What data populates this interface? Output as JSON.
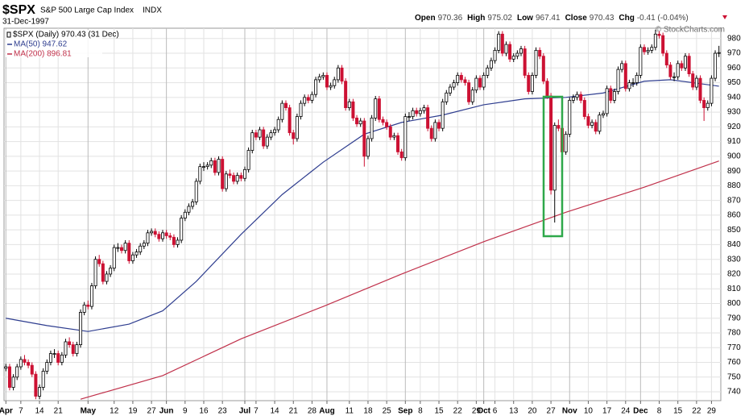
{
  "header": {
    "symbol": "$SPX",
    "name": "S&P 500 Large Cap Index",
    "exchange": "INDX",
    "date": "31-Dec-1997",
    "quote": [
      {
        "label": "Open",
        "value": "970.36"
      },
      {
        "label": "High",
        "value": "975.02"
      },
      {
        "label": "Low",
        "value": "967.41"
      },
      {
        "label": "Close",
        "value": "970.43"
      },
      {
        "label": "Chg",
        "value": "-0.41 (-0.04%)"
      }
    ],
    "credit": "© StockCharts.com"
  },
  "chart_data": {
    "type": "candlestick",
    "name": "$SPX (Daily) 970.43 (31 Dec)",
    "up_color": "#000000",
    "down_color": "#cc1133",
    "xlim": [
      -0.5,
      191.5
    ],
    "ylim": [
      734,
      987
    ],
    "yticks": [
      740,
      750,
      760,
      770,
      780,
      790,
      800,
      810,
      820,
      830,
      840,
      850,
      860,
      870,
      880,
      890,
      900,
      910,
      920,
      930,
      940,
      950,
      960,
      970,
      980
    ],
    "xticks": [
      {
        "value": 0,
        "label": "Apr"
      },
      {
        "value": 4,
        "label": "7"
      },
      {
        "value": 9,
        "label": "14"
      },
      {
        "value": 14,
        "label": "21"
      },
      {
        "value": 22,
        "label": "May"
      },
      {
        "value": 29,
        "label": "12"
      },
      {
        "value": 34,
        "label": "19"
      },
      {
        "value": 39,
        "label": "27"
      },
      {
        "value": 43,
        "label": "Jun"
      },
      {
        "value": 48,
        "label": "9"
      },
      {
        "value": 53,
        "label": "16"
      },
      {
        "value": 58,
        "label": "23"
      },
      {
        "value": 64,
        "label": "Jul"
      },
      {
        "value": 67,
        "label": "7"
      },
      {
        "value": 72,
        "label": "14"
      },
      {
        "value": 77,
        "label": "21"
      },
      {
        "value": 82,
        "label": "28"
      },
      {
        "value": 86,
        "label": "Aug"
      },
      {
        "value": 92,
        "label": "11"
      },
      {
        "value": 97,
        "label": "18"
      },
      {
        "value": 102,
        "label": "25"
      },
      {
        "value": 107,
        "label": "Sep"
      },
      {
        "value": 111,
        "label": "8"
      },
      {
        "value": 116,
        "label": "15"
      },
      {
        "value": 121,
        "label": "22"
      },
      {
        "value": 126,
        "label": "29"
      },
      {
        "value": 128,
        "label": "Oct"
      },
      {
        "value": 131,
        "label": "6"
      },
      {
        "value": 136,
        "label": "13"
      },
      {
        "value": 141,
        "label": "20"
      },
      {
        "value": 146,
        "label": "27"
      },
      {
        "value": 151,
        "label": "Nov"
      },
      {
        "value": 156,
        "label": "10"
      },
      {
        "value": 161,
        "label": "17"
      },
      {
        "value": 166,
        "label": "24"
      },
      {
        "value": 170,
        "label": "Dec"
      },
      {
        "value": 175,
        "label": "8"
      },
      {
        "value": 180,
        "label": "15"
      },
      {
        "value": 185,
        "label": "22"
      },
      {
        "value": 189,
        "label": "29"
      }
    ],
    "grid": true,
    "open": [
      756,
      757,
      743,
      750,
      757,
      762,
      760,
      758,
      752,
      737,
      743,
      754,
      760,
      766,
      766,
      760,
      765,
      774,
      772,
      766,
      772,
      794,
      799,
      798,
      812,
      830,
      827,
      815,
      820,
      824,
      838,
      838,
      836,
      841,
      829,
      833,
      835,
      839,
      841,
      848,
      849,
      847,
      844,
      848,
      846,
      845,
      840,
      843,
      858,
      862,
      866,
      869,
      883,
      893,
      893,
      894,
      897,
      889,
      898,
      878,
      888,
      887,
      883,
      887,
      885,
      891,
      904,
      916,
      913,
      918,
      907,
      913,
      916,
      918,
      925,
      936,
      933,
      916,
      912,
      927,
      936,
      940,
      938,
      942,
      952,
      954,
      955,
      947,
      948,
      952,
      960,
      951,
      933,
      937,
      926,
      922,
      924,
      900,
      912,
      926,
      939,
      925,
      923,
      920,
      913,
      914,
      903,
      899,
      927,
      927,
      931,
      929,
      931,
      933,
      919,
      912,
      923,
      919,
      937,
      943,
      947,
      950,
      955,
      952,
      950,
      937,
      945,
      953,
      947,
      955,
      960,
      965,
      972,
      983,
      970,
      976,
      966,
      968,
      970,
      973,
      955,
      944,
      955,
      972,
      968,
      951,
      941,
      877,
      921,
      919,
      903,
      915,
      938,
      940,
      942,
      938,
      927,
      921,
      923,
      917,
      928,
      929,
      946,
      938,
      944,
      959,
      963,
      946,
      950,
      950,
      955,
      974,
      971,
      972,
      974,
      983,
      982,
      970,
      962,
      954,
      954,
      963,
      960,
      968,
      956,
      947,
      953,
      938,
      933,
      936,
      953,
      970.36
    ],
    "high": [
      759,
      759,
      752,
      759,
      764,
      765,
      762,
      760,
      754,
      745,
      756,
      762,
      768,
      769,
      768,
      767,
      776,
      777,
      774,
      774,
      796,
      801,
      802,
      814,
      832,
      833,
      829,
      822,
      826,
      840,
      841,
      840,
      843,
      843,
      835,
      837,
      841,
      843,
      850,
      851,
      851,
      849,
      850,
      850,
      848,
      847,
      845,
      860,
      864,
      868,
      871,
      885,
      895,
      896,
      896,
      899,
      899,
      900,
      900,
      890,
      891,
      889,
      889,
      889,
      893,
      906,
      918,
      918,
      920,
      920,
      915,
      918,
      920,
      927,
      938,
      938,
      935,
      918,
      929,
      938,
      942,
      942,
      944,
      954,
      956,
      957,
      957,
      950,
      954,
      962,
      962,
      953,
      939,
      939,
      928,
      926,
      926,
      914,
      928,
      941,
      941,
      927,
      925,
      922,
      916,
      916,
      905,
      929,
      930,
      933,
      933,
      933,
      935,
      935,
      921,
      925,
      925,
      939,
      945,
      949,
      952,
      957,
      957,
      954,
      952,
      947,
      955,
      955,
      957,
      962,
      967,
      974,
      985,
      985,
      978,
      978,
      970,
      972,
      975,
      975,
      957,
      957,
      974,
      974,
      970,
      953,
      943,
      923,
      925,
      921,
      917,
      940,
      942,
      944,
      944,
      940,
      929,
      925,
      925,
      930,
      931,
      948,
      948,
      946,
      961,
      965,
      965,
      952,
      953,
      957,
      976,
      976,
      974,
      976,
      986,
      985,
      984,
      972,
      964,
      957,
      965,
      965,
      970,
      970,
      958,
      955,
      955,
      940,
      938,
      955,
      972,
      975.02
    ],
    "low": [
      754,
      741,
      741,
      748,
      755,
      758,
      756,
      750,
      735,
      735,
      741,
      752,
      758,
      763,
      758,
      758,
      763,
      770,
      764,
      764,
      770,
      792,
      796,
      796,
      810,
      825,
      813,
      813,
      818,
      822,
      835,
      834,
      834,
      827,
      827,
      831,
      833,
      837,
      839,
      846,
      845,
      842,
      842,
      844,
      843,
      838,
      838,
      841,
      856,
      860,
      864,
      867,
      881,
      890,
      891,
      892,
      887,
      887,
      876,
      876,
      885,
      881,
      881,
      883,
      883,
      889,
      902,
      911,
      911,
      905,
      905,
      911,
      914,
      916,
      923,
      931,
      914,
      908,
      910,
      925,
      934,
      936,
      936,
      940,
      950,
      952,
      945,
      945,
      946,
      950,
      949,
      931,
      931,
      924,
      920,
      920,
      893,
      898,
      910,
      924,
      923,
      921,
      918,
      911,
      911,
      901,
      897,
      897,
      924,
      925,
      927,
      927,
      929,
      917,
      910,
      910,
      917,
      917,
      935,
      941,
      945,
      948,
      950,
      948,
      935,
      935,
      943,
      945,
      945,
      953,
      958,
      963,
      970,
      968,
      968,
      964,
      964,
      966,
      968,
      953,
      942,
      942,
      953,
      966,
      949,
      939,
      874,
      855,
      917,
      901,
      901,
      913,
      936,
      938,
      936,
      925,
      919,
      919,
      915,
      915,
      926,
      927,
      936,
      936,
      942,
      957,
      944,
      944,
      947,
      948,
      953,
      969,
      969,
      970,
      972,
      980,
      968,
      960,
      952,
      951,
      952,
      958,
      958,
      954,
      945,
      945,
      936,
      924,
      931,
      934,
      951,
      967.41
    ],
    "close": [
      757,
      743,
      750,
      757,
      762,
      760,
      758,
      752,
      737,
      743,
      754,
      760,
      766,
      766,
      760,
      765,
      774,
      772,
      766,
      772,
      794,
      799,
      798,
      812,
      830,
      827,
      815,
      820,
      824,
      838,
      838,
      836,
      841,
      829,
      833,
      835,
      839,
      841,
      848,
      849,
      847,
      844,
      848,
      846,
      845,
      840,
      843,
      858,
      862,
      866,
      869,
      883,
      893,
      893,
      894,
      897,
      889,
      898,
      878,
      888,
      887,
      883,
      887,
      885,
      891,
      904,
      916,
      913,
      918,
      907,
      913,
      916,
      918,
      925,
      936,
      933,
      916,
      912,
      927,
      936,
      940,
      938,
      942,
      952,
      954,
      955,
      947,
      948,
      952,
      960,
      951,
      933,
      937,
      926,
      922,
      924,
      900,
      912,
      926,
      939,
      925,
      923,
      920,
      913,
      914,
      903,
      899,
      927,
      927,
      931,
      929,
      931,
      933,
      919,
      912,
      923,
      919,
      937,
      943,
      947,
      950,
      955,
      952,
      950,
      937,
      945,
      953,
      947,
      955,
      960,
      965,
      972,
      983,
      970,
      976,
      966,
      968,
      970,
      973,
      955,
      944,
      955,
      972,
      968,
      951,
      941,
      877,
      921,
      919,
      903,
      915,
      938,
      940,
      942,
      938,
      927,
      921,
      923,
      917,
      928,
      929,
      946,
      938,
      944,
      959,
      963,
      946,
      950,
      950,
      955,
      974,
      971,
      972,
      974,
      983,
      982,
      970,
      962,
      954,
      954,
      963,
      960,
      968,
      956,
      947,
      953,
      938,
      933,
      936,
      953,
      970,
      970.43
    ],
    "series": [
      {
        "name": "MA(50) 947.62",
        "color": "#2e3d8f",
        "x": [
          0,
          11,
          22,
          33,
          42,
          51,
          63,
          74,
          85,
          96,
          106,
          117,
          128,
          139,
          150,
          160,
          171,
          178,
          184,
          191
        ],
        "values": [
          790,
          785,
          781,
          786,
          795,
          815,
          847,
          874,
          896,
          915,
          923,
          928,
          935,
          939,
          940,
          943,
          951,
          952,
          950,
          947.62
        ]
      },
      {
        "name": "MA(200) 896.81",
        "color": "#c0304a",
        "x": [
          20,
          42,
          63,
          85,
          106,
          128,
          150,
          171,
          191
        ],
        "values": [
          735,
          751,
          776,
          798,
          820,
          842,
          862,
          879,
          896.81
        ]
      }
    ]
  }
}
